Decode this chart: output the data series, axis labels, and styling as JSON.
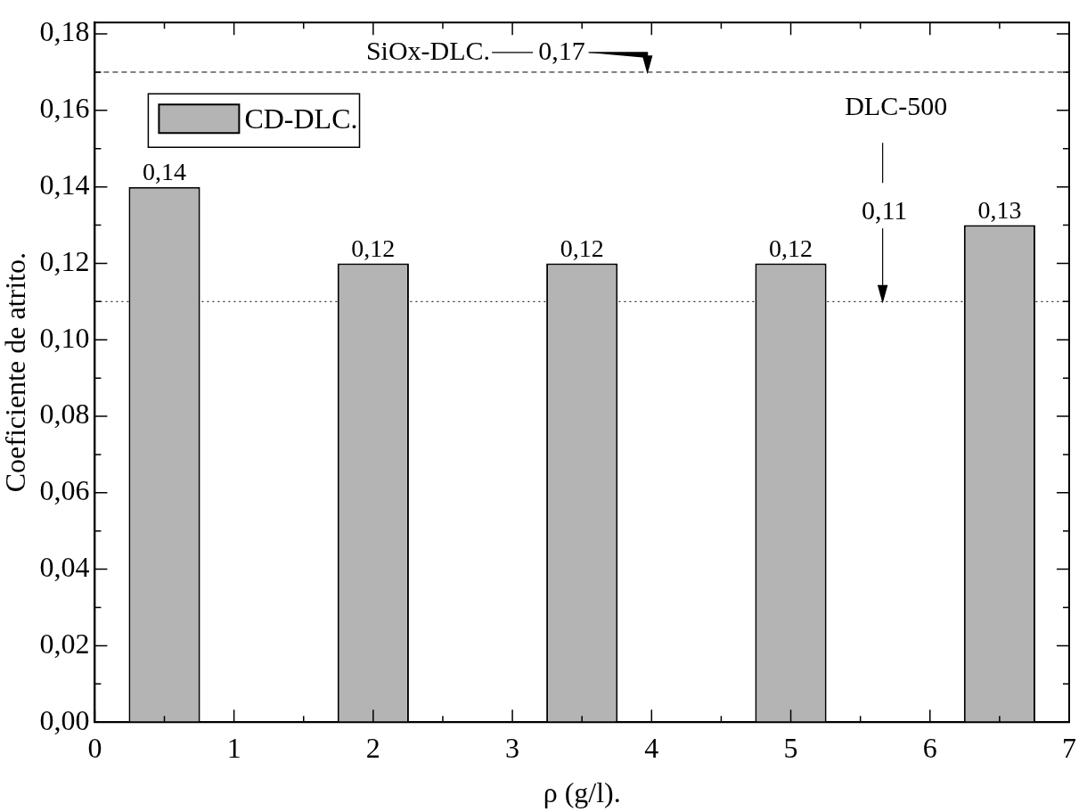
{
  "chart_data": {
    "type": "bar",
    "xlabel": "ρ (g/l).",
    "ylabel": "Coeficiente de atrito.",
    "x": [
      0.5,
      2,
      3.5,
      5,
      6.5
    ],
    "series": [
      {
        "name": "CD-DLC.",
        "color": "#b4b4b4",
        "values": [
          0.14,
          0.12,
          0.12,
          0.12,
          0.13
        ],
        "value_labels": [
          "0,14",
          "0,12",
          "0,12",
          "0,12",
          "0,13"
        ]
      }
    ],
    "xlim": [
      0,
      7
    ],
    "xticks": [
      0,
      1,
      2,
      3,
      4,
      5,
      6,
      7
    ],
    "ylim": [
      0,
      0.183
    ],
    "yticks": [
      {
        "value": 0,
        "label": "0,00"
      },
      {
        "value": 0.02,
        "label": "0,02"
      },
      {
        "value": 0.04,
        "label": "0,04"
      },
      {
        "value": 0.06,
        "label": "0,06"
      },
      {
        "value": 0.08,
        "label": "0,08"
      },
      {
        "value": 0.1,
        "label": "0,10"
      },
      {
        "value": 0.12,
        "label": "0,12"
      },
      {
        "value": 0.14,
        "label": "0,14"
      },
      {
        "value": 0.16,
        "label": "0,16"
      },
      {
        "value": 0.18,
        "label": "0,18"
      }
    ],
    "ref_lines": [
      {
        "axis": "y",
        "value": 0.17,
        "line_style": "dashed",
        "color": "#000000"
      },
      {
        "axis": "y",
        "value": 0.11,
        "line_style": "dotted",
        "color": "#000000"
      }
    ],
    "annotations": [
      "SiOx-DLC.",
      "DLC-500",
      {
        "text": "0,17",
        "x": 3.97,
        "y": 0.17
      },
      {
        "text": "0,11",
        "x": 5.66,
        "y": 0.11
      }
    ],
    "legend": "top left",
    "grid": false
  }
}
